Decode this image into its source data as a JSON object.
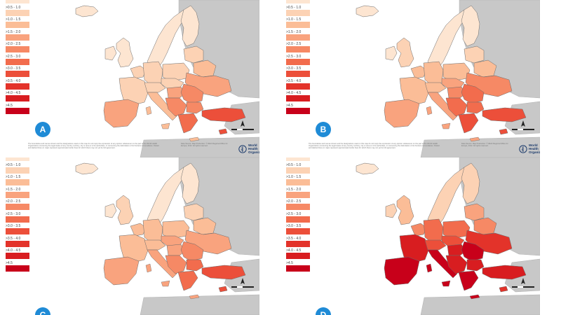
{
  "legend": [
    {
      "label": "0 - 0.5",
      "color": "#fde5d1"
    },
    {
      "label": ">0.5 - 1.0",
      "color": "#fcd2b4"
    },
    {
      "label": ">1.0 - 1.5",
      "color": "#fbbd97"
    },
    {
      "label": ">1.5 - 2.0",
      "color": "#f9a37e"
    },
    {
      "label": ">2.0 - 2.5",
      "color": "#f68965"
    },
    {
      "label": ">2.5 - 3.0",
      "color": "#f26c4d"
    },
    {
      "label": ">3.0 - 3.5",
      "color": "#ec4f3a"
    },
    {
      "label": ">3.5 - 4.0",
      "color": "#e3332a"
    },
    {
      "label": ">4.0 - 4.5",
      "color": "#d81d20"
    },
    {
      "label": ">4.5",
      "color": "#c8001a"
    }
  ],
  "colors": {
    "sea": "#ffffff",
    "outside_region": "#c8c8c8",
    "borders": "#6b6b6b",
    "badge": "#1f8bd6"
  },
  "panels": [
    {
      "badge": "A",
      "levels": {
        "iberia": 3,
        "france": 1,
        "uk": 0,
        "ireland": 0,
        "benelux": 1,
        "germany": 1,
        "alps": 1,
        "italy": 2,
        "poland": 1,
        "cz_sk": 1,
        "hungary": 3,
        "romania": 4,
        "balkans": 4,
        "greece": 5,
        "bulgaria": 4,
        "ukraine": 3,
        "belarus": 2,
        "baltics": 1,
        "scandinavia": 0,
        "finland": 0,
        "iceland": 0,
        "turkey": 6,
        "cyprus": 6
      }
    },
    {
      "badge": "B",
      "levels": {
        "iberia": 3,
        "france": 2,
        "uk": 1,
        "ireland": 0,
        "benelux": 2,
        "germany": 2,
        "alps": 2,
        "italy": 3,
        "poland": 2,
        "cz_sk": 3,
        "hungary": 4,
        "romania": 5,
        "balkans": 5,
        "greece": 6,
        "bulgaria": 5,
        "ukraine": 4,
        "belarus": 2,
        "baltics": 1,
        "scandinavia": 0,
        "finland": 0,
        "iceland": 0,
        "turkey": 6,
        "cyprus": 6
      }
    },
    {
      "badge": "C",
      "levels": {
        "iberia": 3,
        "france": 2,
        "uk": 1,
        "ireland": 0,
        "benelux": 2,
        "germany": 2,
        "alps": 2,
        "italy": 3,
        "poland": 2,
        "cz_sk": 3,
        "hungary": 3,
        "romania": 4,
        "balkans": 4,
        "greece": 5,
        "bulgaria": 5,
        "ukraine": 3,
        "belarus": 2,
        "baltics": 1,
        "scandinavia": 0,
        "finland": 0,
        "iceland": 0,
        "turkey": 6,
        "cyprus": 6
      }
    },
    {
      "badge": "D",
      "levels": {
        "iberia": 9,
        "france": 8,
        "uk": 2,
        "ireland": 1,
        "benelux": 4,
        "germany": 5,
        "alps": 6,
        "italy": 9,
        "poland": 5,
        "cz_sk": 6,
        "hungary": 8,
        "romania": 9,
        "balkans": 8,
        "greece": 9,
        "bulgaria": 8,
        "ukraine": 7,
        "belarus": 4,
        "baltics": 3,
        "scandinavia": 1,
        "finland": 1,
        "iceland": 0,
        "turkey": 8,
        "cyprus": 7
      }
    }
  ],
  "footnote": "The boundaries and names shown and the designations used on this map do not imply the expression of any opinion whatsoever on the part of the World Health Organization concerning the legal status of any country, territory, city or area or of its authorities, or concerning the delimitation of its frontiers or boundaries. Dotted and dashed lines on maps represent approximate border lines for which there may not yet be full agreement.",
  "source_note": "Data Source: Map Production: © WHO Regional Office for Europe, 2012. All rights reserved.",
  "who_logo_line1": "World Health",
  "who_logo_line2": "Organization"
}
